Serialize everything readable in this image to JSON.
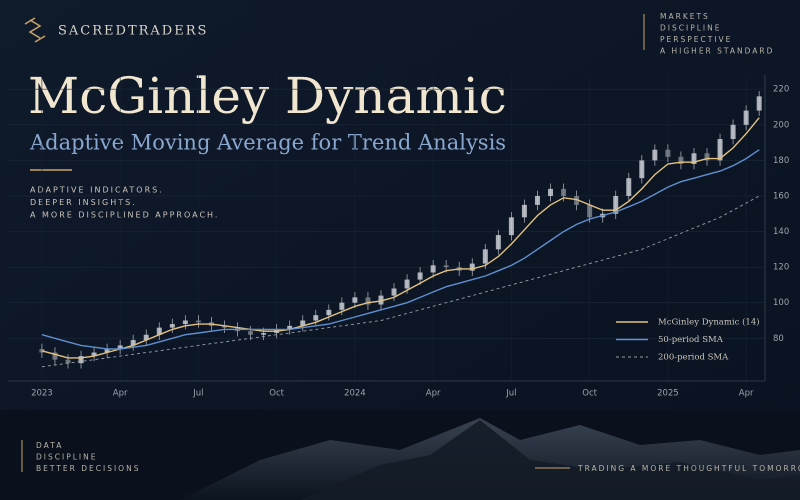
{
  "brand": "SACREDTRADERS",
  "header_tags": [
    "MARKETS",
    "DISCIPLINE",
    "PERSPECTIVE",
    "A HIGHER STANDARD"
  ],
  "intro_lines": [
    "ADAPTIVE INDICATORS.",
    "DEEPER INSIGHTS.",
    "A MORE DISCIPLINED APPROACH."
  ],
  "footer_left": [
    "DATA",
    "DISCIPLINE",
    "BETTER DECISIONS"
  ],
  "footer_right": "TRADING A MORE THOUGHTFUL TOMORROW",
  "chart_data": {
    "type": "candlestick",
    "title": "McGinley Dynamic",
    "subtitle": "Adaptive Moving Average for Trend Analysis",
    "x": [
      0,
      0.5,
      1,
      1.5,
      2,
      2.5,
      3,
      3.5,
      4,
      4.5,
      5,
      5.5,
      6,
      6.5,
      7,
      7.5,
      8,
      8.5,
      9,
      9.5,
      10,
      10.5,
      11,
      11.5,
      12,
      12.5,
      13,
      13.5,
      14,
      14.5,
      15,
      15.5,
      16,
      16.5,
      17,
      17.5,
      18,
      18.5,
      19,
      19.5,
      20,
      20.5,
      21,
      21.5,
      22,
      22.5,
      23,
      23.5,
      24,
      24.5,
      25,
      25.5,
      26,
      26.5,
      27,
      27.5
    ],
    "candles": {
      "color": "#c9ccd3",
      "open": [
        74,
        72,
        68,
        66,
        70,
        72,
        74,
        76,
        79,
        82,
        86,
        88,
        90,
        89,
        87,
        86,
        84,
        82,
        83,
        85,
        87,
        90,
        93,
        96,
        100,
        103,
        99,
        104,
        108,
        113,
        117,
        121,
        120,
        118,
        122,
        130,
        138,
        148,
        155,
        160,
        164,
        160,
        155,
        148,
        150,
        160,
        170,
        180,
        186,
        182,
        178,
        184,
        180,
        192,
        200,
        208
      ],
      "high": [
        77,
        75,
        71,
        73,
        75,
        77,
        79,
        82,
        85,
        89,
        91,
        93,
        93,
        92,
        90,
        89,
        87,
        86,
        88,
        90,
        93,
        96,
        99,
        103,
        106,
        106,
        107,
        111,
        116,
        120,
        124,
        124,
        123,
        125,
        133,
        141,
        151,
        158,
        163,
        167,
        167,
        163,
        158,
        153,
        163,
        173,
        183,
        189,
        189,
        185,
        187,
        187,
        195,
        203,
        211,
        219
      ],
      "low": [
        69,
        65,
        63,
        63,
        67,
        69,
        71,
        73,
        76,
        79,
        83,
        85,
        86,
        84,
        83,
        81,
        79,
        79,
        80,
        82,
        84,
        87,
        90,
        93,
        97,
        96,
        96,
        101,
        105,
        110,
        114,
        117,
        115,
        115,
        119,
        127,
        135,
        145,
        152,
        157,
        157,
        152,
        145,
        145,
        147,
        157,
        167,
        177,
        179,
        175,
        175,
        177,
        177,
        189,
        197,
        205
      ],
      "close": [
        72,
        68,
        66,
        70,
        72,
        74,
        76,
        79,
        82,
        86,
        88,
        90,
        89,
        87,
        86,
        84,
        82,
        83,
        85,
        87,
        90,
        93,
        96,
        100,
        103,
        99,
        104,
        108,
        113,
        117,
        121,
        120,
        118,
        122,
        130,
        138,
        148,
        155,
        160,
        164,
        160,
        155,
        148,
        150,
        160,
        170,
        180,
        186,
        182,
        178,
        184,
        180,
        192,
        200,
        208,
        216
      ]
    },
    "series": [
      {
        "name": "McGinley Dynamic (14)",
        "color": "#e3c27e",
        "style": "solid",
        "values": [
          73,
          71,
          69,
          69,
          70,
          72,
          74,
          76,
          79,
          82,
          85,
          87,
          88,
          88,
          87,
          86,
          85,
          84,
          84,
          85,
          87,
          89,
          92,
          95,
          98,
          100,
          101,
          103,
          107,
          111,
          115,
          118,
          119,
          119,
          121,
          126,
          133,
          141,
          149,
          155,
          159,
          158,
          155,
          152,
          152,
          157,
          164,
          172,
          178,
          179,
          179,
          181,
          181,
          187,
          195,
          204
        ]
      },
      {
        "name": "50-period SMA",
        "color": "#5f8fcf",
        "style": "solid",
        "values": [
          82,
          80,
          78,
          76,
          75,
          74,
          74,
          75,
          76,
          78,
          80,
          82,
          83,
          84,
          85,
          85,
          85,
          85,
          85,
          85,
          86,
          87,
          88,
          90,
          92,
          94,
          96,
          98,
          100,
          103,
          106,
          109,
          111,
          113,
          115,
          118,
          121,
          125,
          130,
          135,
          140,
          144,
          147,
          149,
          151,
          154,
          157,
          161,
          165,
          168,
          170,
          172,
          174,
          177,
          181,
          186
        ]
      },
      {
        "name": "200-period SMA",
        "color": "#9aa0aa",
        "style": "dashed",
        "values": [
          64,
          65,
          66,
          67,
          68,
          69,
          70,
          71,
          72,
          73,
          74,
          75,
          76,
          77,
          78,
          79,
          80,
          81,
          82,
          83,
          84,
          85,
          86,
          87,
          88,
          89,
          90,
          92,
          94,
          96,
          98,
          100,
          102,
          104,
          106,
          108,
          110,
          112,
          114,
          116,
          118,
          120,
          122,
          124,
          126,
          128,
          130,
          133,
          136,
          139,
          142,
          145,
          148,
          152,
          156,
          160
        ]
      }
    ],
    "xlim": [
      -1.3,
      27.8
    ],
    "xticks": [
      {
        "value": 0,
        "label": "2023"
      },
      {
        "value": 3,
        "label": "Apr"
      },
      {
        "value": 6,
        "label": "Jul"
      },
      {
        "value": 9,
        "label": "Oct"
      },
      {
        "value": 12,
        "label": "2024"
      },
      {
        "value": 15,
        "label": "Apr"
      },
      {
        "value": 18,
        "label": "Jul"
      },
      {
        "value": 21,
        "label": "Oct"
      },
      {
        "value": 24,
        "label": "2025"
      },
      {
        "value": 27,
        "label": "Apr"
      }
    ],
    "ylim": [
      56,
      228
    ],
    "yticks": [
      80,
      100,
      120,
      140,
      160,
      180,
      200,
      220
    ],
    "grid": true,
    "legend": "lower right"
  }
}
